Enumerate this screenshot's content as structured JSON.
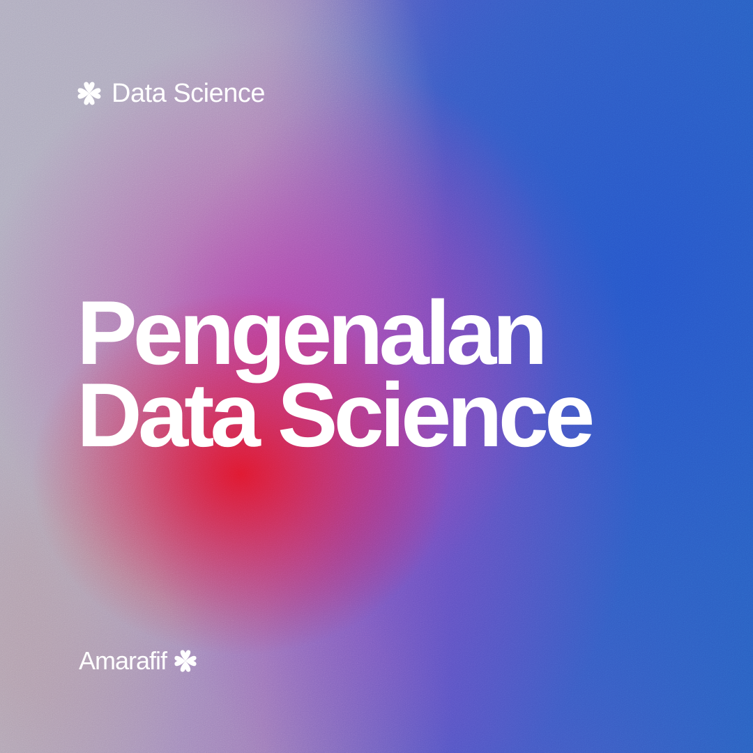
{
  "tag": {
    "label": "Data Science",
    "icon": "clover-icon"
  },
  "headline": {
    "line1": "Pengenalan",
    "line2": "Data Science"
  },
  "brand": {
    "name": "Amarafif",
    "icon": "clover-icon"
  },
  "colors": {
    "text": "#ffffff",
    "blue": "#2a5fc0",
    "red": "#e11428",
    "purple": "#b43caa",
    "grey": "#afacbe"
  }
}
